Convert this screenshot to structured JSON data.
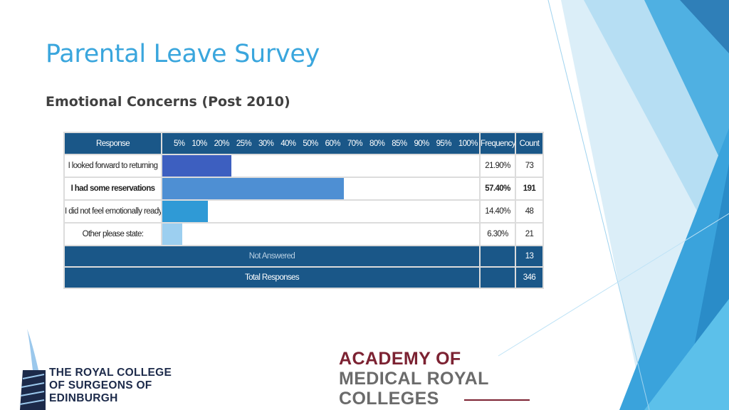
{
  "slide": {
    "title": "Parental Leave Survey",
    "subtitle": "Emotional Concerns (Post 2010)"
  },
  "table": {
    "headers": {
      "response": "Response",
      "frequency": "Frequency",
      "count": "Count"
    },
    "scale": [
      "5%",
      "10%",
      "20%",
      "25%",
      "30%",
      "40%",
      "50%",
      "60%",
      "70%",
      "80%",
      "85%",
      "90%",
      "95%",
      "100%"
    ],
    "rows": [
      {
        "label": "I looked forward to returning",
        "frequency": "21.90%",
        "count": "73",
        "value": 21.9,
        "color": "#3d5fc0",
        "bold": false
      },
      {
        "label": "I had some reservations",
        "frequency": "57.40%",
        "count": "191",
        "value": 57.4,
        "color": "#4e8fd3",
        "bold": true
      },
      {
        "label": "I did not feel emotionally ready to",
        "frequency": "14.40%",
        "count": "48",
        "value": 14.4,
        "color": "#2f9ad6",
        "bold": false
      },
      {
        "label": "Other please state:",
        "frequency": "6.30%",
        "count": "21",
        "value": 6.3,
        "color": "#9ccff0",
        "bold": false
      }
    ],
    "not_answered_label": "Not Answered",
    "not_answered_count": "13",
    "total_label": "Total Responses",
    "total_count": "346"
  },
  "logos": {
    "rcs": [
      "THE ROYAL COLLEGE",
      "OF SURGEONS OF",
      "EDINBURGH"
    ],
    "amrc": [
      "ACADEMY OF",
      "MEDICAL ROYAL",
      "COLLEGES"
    ]
  },
  "colors": {
    "title": "#3aa6dd",
    "header": "#1a5788",
    "amrc_red": "#7c2232"
  }
}
